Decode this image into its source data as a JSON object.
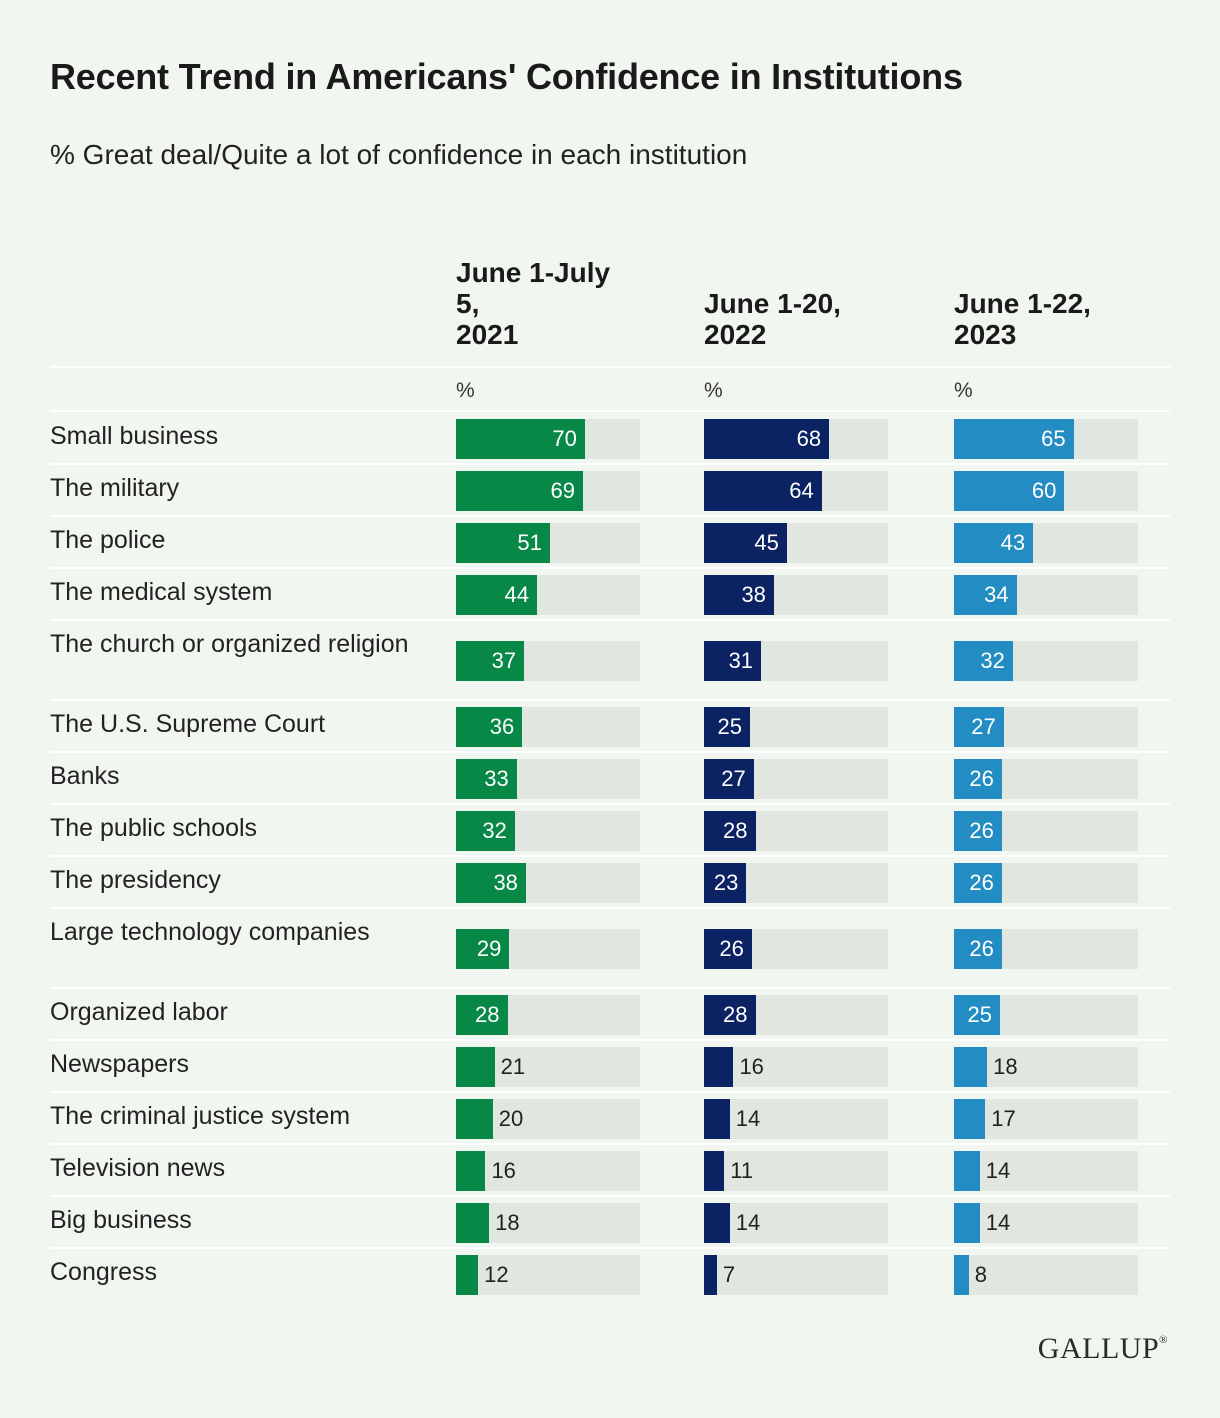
{
  "header": {
    "title": "Recent Trend in Americans' Confidence in Institutions",
    "subtitle": "% Great deal/Quite a lot of confidence in each institution"
  },
  "logo": {
    "text": "GALLUP",
    "mark": "®"
  },
  "chart_data": {
    "type": "bar",
    "title": "Recent Trend in Americans' Confidence in Institutions",
    "subtitle": "% Great deal/Quite a lot of confidence in each institution",
    "unit_label": "%",
    "xlim": [
      0,
      100
    ],
    "categories": [
      "Small business",
      "The military",
      "The police",
      "The medical system",
      "The church or organized religion",
      "The U.S. Supreme Court",
      "Banks",
      "The public schools",
      "The presidency",
      "Large technology companies",
      "Organized labor",
      "Newspapers",
      "The criminal justice system",
      "Television news",
      "Big business",
      "Congress"
    ],
    "series": [
      {
        "name": "June 1-July 5, 2021",
        "header_lines": [
          "June 1-July",
          "5,",
          "2021"
        ],
        "color": "#078847",
        "values": [
          70,
          69,
          51,
          44,
          37,
          36,
          33,
          32,
          38,
          29,
          28,
          21,
          20,
          16,
          18,
          12
        ]
      },
      {
        "name": "June 1-20, 2022",
        "header_lines": [
          "June 1-20,",
          "2022"
        ],
        "color": "#0b2263",
        "values": [
          68,
          64,
          45,
          38,
          31,
          25,
          27,
          28,
          23,
          26,
          28,
          16,
          14,
          11,
          14,
          7
        ]
      },
      {
        "name": "June 1-22, 2023",
        "header_lines": [
          "June 1-22,",
          "2023"
        ],
        "color": "#228cc3",
        "values": [
          65,
          60,
          43,
          34,
          32,
          27,
          26,
          26,
          26,
          26,
          25,
          18,
          17,
          14,
          14,
          8
        ]
      }
    ],
    "grid": false,
    "legend": "column headers"
  }
}
